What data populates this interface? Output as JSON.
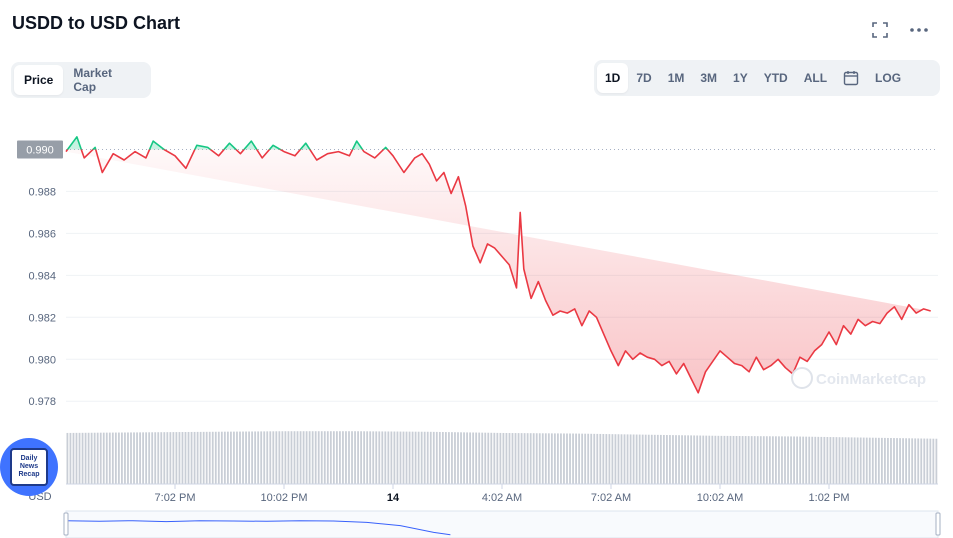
{
  "header": {
    "title": "USDD to USD Chart"
  },
  "chart_type_tabs": [
    {
      "label": "Price",
      "active": true
    },
    {
      "label": "Market Cap",
      "active": false
    }
  ],
  "range_tabs": [
    {
      "label": "1D",
      "active": true
    },
    {
      "label": "7D",
      "active": false
    },
    {
      "label": "1M",
      "active": false
    },
    {
      "label": "3M",
      "active": false
    },
    {
      "label": "1Y",
      "active": false
    },
    {
      "label": "YTD",
      "active": false
    },
    {
      "label": "ALL",
      "active": false
    }
  ],
  "log_label": "LOG",
  "icons": {
    "fullscreen": "fullscreen-icon",
    "more": "more-icon",
    "calendar": "calendar-icon"
  },
  "badge": {
    "lines": [
      "Daily",
      "News",
      "Recap"
    ]
  },
  "axis_currency_label": "USD",
  "watermark": "CoinMarketCap",
  "colors": {
    "up": "#16c784",
    "down": "#ea3943",
    "reference_fill": "#979ea8"
  },
  "chart_data": {
    "type": "line",
    "reference_value": 0.99,
    "reference_label": "0.990",
    "ylim": [
      0.9772,
      0.9915
    ],
    "yticks": [
      0.988,
      0.986,
      0.984,
      0.982,
      0.98,
      0.978
    ],
    "ytick_labels": [
      "0.988",
      "0.986",
      "0.984",
      "0.982",
      "0.980",
      "0.978"
    ],
    "xlim": [
      0,
      24
    ],
    "xticks": [
      {
        "t": 3.0,
        "label": "7:02 PM",
        "bold": false
      },
      {
        "t": 6.0,
        "label": "10:02 PM",
        "bold": false
      },
      {
        "t": 9.0,
        "label": "14",
        "bold": true
      },
      {
        "t": 12.0,
        "label": "4:02 AM",
        "bold": false
      },
      {
        "t": 15.0,
        "label": "7:02 AM",
        "bold": false
      },
      {
        "t": 18.0,
        "label": "10:02 AM",
        "bold": false
      },
      {
        "t": 21.0,
        "label": "1:02 PM",
        "bold": false
      }
    ],
    "price": {
      "t": [
        0.0,
        0.3,
        0.5,
        0.8,
        1.0,
        1.3,
        1.6,
        1.9,
        2.2,
        2.4,
        2.7,
        3.0,
        3.3,
        3.6,
        3.9,
        4.2,
        4.5,
        4.8,
        5.1,
        5.4,
        5.7,
        6.0,
        6.3,
        6.6,
        6.9,
        7.2,
        7.5,
        7.8,
        8.0,
        8.2,
        8.5,
        8.8,
        9.0,
        9.3,
        9.6,
        9.8,
        10.0,
        10.2,
        10.4,
        10.6,
        10.8,
        11.0,
        11.2,
        11.4,
        11.6,
        11.8,
        12.0,
        12.2,
        12.4,
        12.5,
        12.6,
        12.8,
        13.0,
        13.2,
        13.4,
        13.6,
        13.8,
        14.0,
        14.2,
        14.4,
        14.6,
        14.8,
        15.0,
        15.2,
        15.4,
        15.6,
        15.8,
        16.0,
        16.2,
        16.4,
        16.6,
        16.8,
        17.0,
        17.2,
        17.4,
        17.6,
        17.8,
        18.0,
        18.2,
        18.4,
        18.6,
        18.8,
        19.0,
        19.2,
        19.4,
        19.6,
        19.8,
        20.0,
        20.2,
        20.4,
        20.6,
        20.8,
        21.0,
        21.2,
        21.4,
        21.6,
        21.8,
        22.0,
        22.2,
        22.4,
        22.6,
        22.8,
        23.0,
        23.2,
        23.4,
        23.6,
        23.8,
        24.0
      ],
      "v": [
        0.9899,
        0.9906,
        0.9896,
        0.9901,
        0.9889,
        0.9898,
        0.9895,
        0.9899,
        0.9896,
        0.9904,
        0.99,
        0.9897,
        0.9891,
        0.9902,
        0.9901,
        0.9897,
        0.9903,
        0.9898,
        0.9904,
        0.9896,
        0.9902,
        0.9899,
        0.9897,
        0.9903,
        0.9895,
        0.9898,
        0.9899,
        0.9897,
        0.9904,
        0.9899,
        0.9896,
        0.9901,
        0.9897,
        0.9889,
        0.9896,
        0.9898,
        0.9893,
        0.9885,
        0.9889,
        0.9879,
        0.9887,
        0.9873,
        0.9854,
        0.9846,
        0.9855,
        0.9853,
        0.9849,
        0.9845,
        0.9834,
        0.987,
        0.9843,
        0.9829,
        0.9837,
        0.9828,
        0.9821,
        0.9823,
        0.9822,
        0.9824,
        0.9816,
        0.9823,
        0.982,
        0.9812,
        0.9804,
        0.9797,
        0.9804,
        0.98,
        0.9803,
        0.9801,
        0.98,
        0.9797,
        0.9799,
        0.9793,
        0.9798,
        0.9791,
        0.9784,
        0.9794,
        0.9799,
        0.9804,
        0.9801,
        0.9798,
        0.9797,
        0.9794,
        0.9801,
        0.9795,
        0.9797,
        0.98,
        0.9796,
        0.9793,
        0.9801,
        0.9799,
        0.9804,
        0.9807,
        0.9813,
        0.9807,
        0.9816,
        0.9812,
        0.9819,
        0.9816,
        0.9818,
        0.9817,
        0.9822,
        0.9825,
        0.9819,
        0.9826,
        0.9822,
        0.9824,
        0.9823
      ]
    },
    "volume": {
      "t": [
        0,
        2,
        4,
        6,
        8,
        10,
        12,
        14,
        16,
        18,
        20,
        22,
        24
      ],
      "relative": [
        0.88,
        0.89,
        0.9,
        0.91,
        0.91,
        0.9,
        0.88,
        0.87,
        0.85,
        0.83,
        0.82,
        0.8,
        0.78
      ]
    },
    "navigator": {
      "t": [
        0,
        1,
        2,
        3,
        4,
        5,
        6,
        7,
        8,
        9,
        10,
        11,
        11.5
      ],
      "v": [
        0.9899,
        0.9897,
        0.9899,
        0.9896,
        0.9899,
        0.9898,
        0.9897,
        0.9899,
        0.9898,
        0.9893,
        0.9882,
        0.9858,
        0.985
      ]
    }
  }
}
